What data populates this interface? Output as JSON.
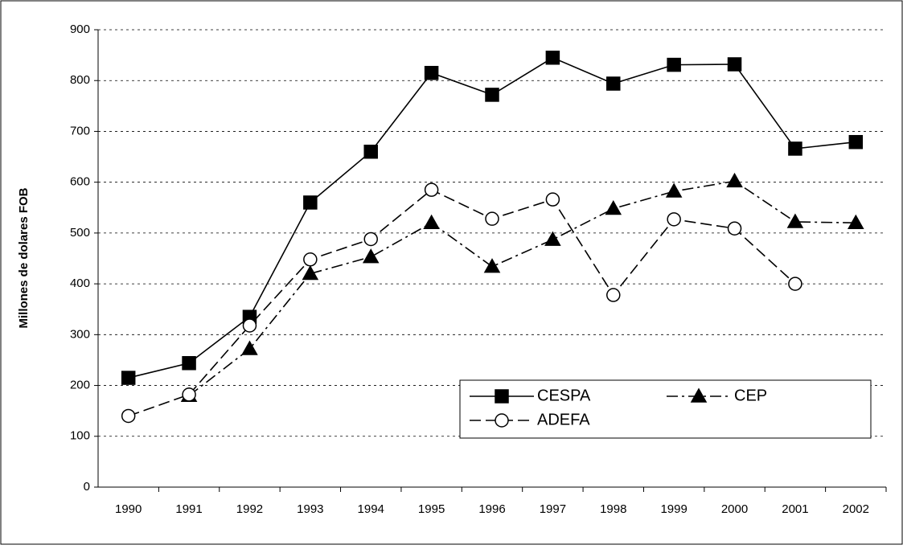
{
  "chart_data": {
    "type": "line",
    "y_label": "Millones de dolares FOB",
    "categories": [
      "1990",
      "1991",
      "1992",
      "1993",
      "1994",
      "1995",
      "1996",
      "1997",
      "1998",
      "1999",
      "2000",
      "2001",
      "2002"
    ],
    "series": [
      {
        "name": "CESPA",
        "color": "#000000",
        "line_style": "solid",
        "marker": "square",
        "marker_fill": "#000000",
        "values": [
          215,
          244,
          335,
          560,
          660,
          815,
          772,
          845,
          794,
          831,
          832,
          666,
          679
        ]
      },
      {
        "name": "CEP",
        "color": "#000000",
        "line_style": "dashdot",
        "marker": "triangle",
        "marker_fill": "#000000",
        "values": [
          null,
          180,
          272,
          420,
          453,
          520,
          434,
          487,
          548,
          582,
          602,
          522,
          520
        ]
      },
      {
        "name": "ADEFA",
        "color": "#000000",
        "line_style": "dashed",
        "marker": "circle",
        "marker_fill": "#ffffff",
        "values": [
          140,
          182,
          318,
          448,
          488,
          585,
          528,
          566,
          378,
          527,
          509,
          400,
          null
        ]
      }
    ],
    "ylim": [
      0,
      900
    ],
    "yticks": [
      0,
      100,
      200,
      300,
      400,
      500,
      600,
      700,
      800,
      900
    ],
    "grid": true,
    "legend": "lower right"
  }
}
